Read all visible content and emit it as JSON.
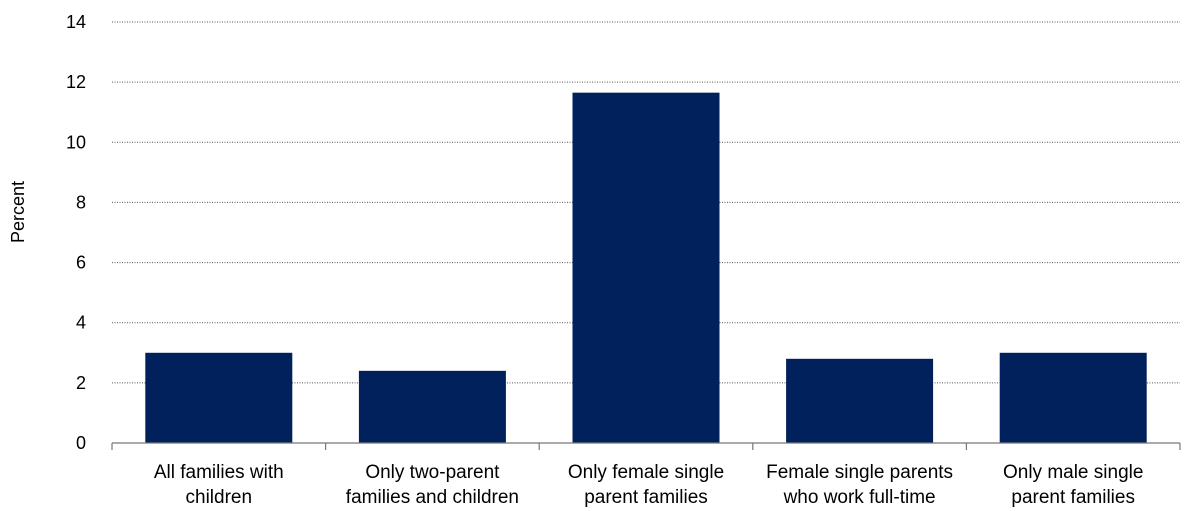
{
  "chart_data": {
    "type": "bar",
    "title": "",
    "xlabel": "",
    "ylabel": "Percent",
    "ylim": [
      0,
      14
    ],
    "yticks": [
      "0",
      "2",
      "4",
      "6",
      "8",
      "10",
      "12",
      "14"
    ],
    "grid": true,
    "categories": [
      [
        "All families with",
        "children"
      ],
      [
        "Only two-parent",
        "families and children"
      ],
      [
        "Only female single",
        "parent families"
      ],
      [
        "Female single parents",
        "who work full-time"
      ],
      [
        "Only male single",
        "parent families"
      ]
    ],
    "values": [
      3.0,
      2.4,
      11.65,
      2.8,
      3.0
    ],
    "colors": {
      "bar": "#00215c",
      "grid": "#555555",
      "axis": "#777777"
    }
  }
}
